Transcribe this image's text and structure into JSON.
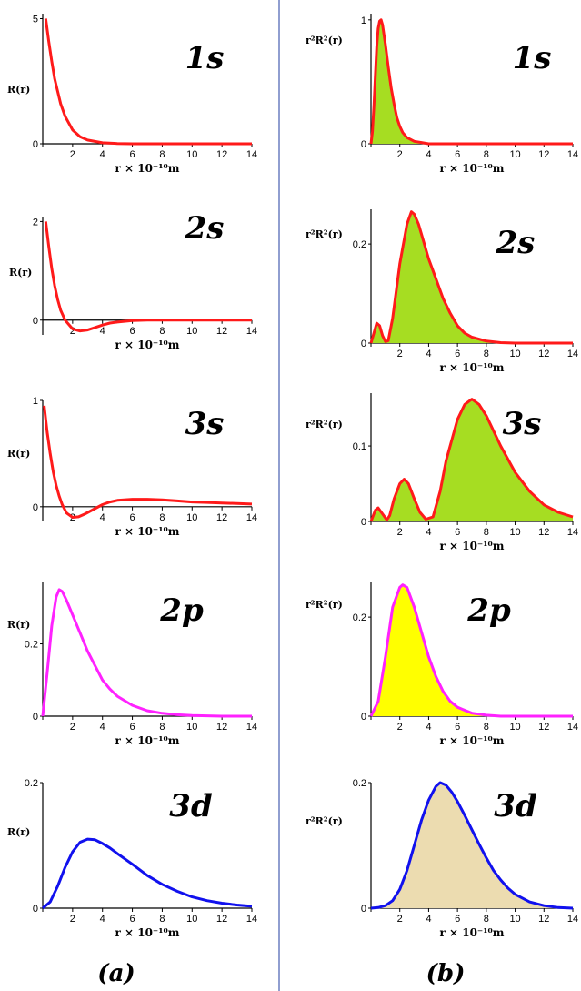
{
  "column_labels": [
    "(a)",
    "(b)"
  ],
  "colors": {
    "divider": "#6b7fc0",
    "red": "#ff1a1a",
    "magenta": "#ff22ff",
    "blue": "#1111ee",
    "fill_green": "#a6dd22",
    "fill_yellow": "#ffff00",
    "fill_tan": "#ecdcb0"
  },
  "chart_data": [
    {
      "id": "a1s",
      "type": "line",
      "orbital": "1s",
      "ylabel": "R(r)",
      "xlabel": "r × 10⁻¹⁰m",
      "xlim": [
        0,
        14
      ],
      "ylim": [
        0,
        5.2
      ],
      "x_ticks": [
        0,
        2,
        4,
        6,
        8,
        10,
        12,
        14
      ],
      "y_ticks": [
        0,
        5
      ],
      "line_color": "#ff1a1a",
      "series": [
        {
          "x": [
            0.2,
            0.4,
            0.6,
            0.8,
            1,
            1.2,
            1.5,
            2,
            2.5,
            3,
            4,
            5,
            6,
            14
          ],
          "y": [
            5.0,
            4.1,
            3.3,
            2.6,
            2.1,
            1.6,
            1.1,
            0.55,
            0.28,
            0.15,
            0.04,
            0.01,
            0,
            0
          ]
        }
      ]
    },
    {
      "id": "b1s",
      "type": "area",
      "orbital": "1s",
      "ylabel": "r²R²(r)",
      "xlabel": "r × 10⁻¹⁰m",
      "xlim": [
        0,
        14
      ],
      "ylim": [
        0,
        1.05
      ],
      "x_ticks": [
        0,
        2,
        4,
        6,
        8,
        10,
        12,
        14
      ],
      "y_ticks": [
        0,
        1
      ],
      "line_color": "#ff1a1a",
      "fill_color": "#a6dd22",
      "series": [
        {
          "x": [
            0,
            0.1,
            0.2,
            0.3,
            0.4,
            0.5,
            0.6,
            0.7,
            0.8,
            0.9,
            1,
            1.2,
            1.4,
            1.6,
            1.8,
            2,
            2.2,
            2.5,
            3,
            3.5,
            4,
            14
          ],
          "y": [
            0,
            0.1,
            0.3,
            0.55,
            0.78,
            0.93,
            0.99,
            1.0,
            0.96,
            0.88,
            0.8,
            0.62,
            0.45,
            0.32,
            0.21,
            0.14,
            0.09,
            0.05,
            0.02,
            0.01,
            0,
            0
          ]
        }
      ]
    },
    {
      "id": "a2s",
      "type": "line",
      "orbital": "2s",
      "ylabel": "R(r)",
      "xlabel": "r × 10⁻¹⁰m",
      "xlim": [
        0,
        14
      ],
      "ylim": [
        -0.3,
        2.1
      ],
      "x_ticks": [
        0,
        2,
        4,
        6,
        8,
        10,
        12,
        14
      ],
      "y_ticks": [
        0,
        2
      ],
      "line_color": "#ff1a1a",
      "series": [
        {
          "x": [
            0.2,
            0.4,
            0.6,
            0.8,
            1,
            1.2,
            1.5,
            2,
            2.5,
            3,
            3.5,
            4,
            4.5,
            5,
            6,
            7,
            8,
            14
          ],
          "y": [
            2.0,
            1.5,
            1.05,
            0.7,
            0.42,
            0.2,
            0.0,
            -0.18,
            -0.22,
            -0.2,
            -0.15,
            -0.1,
            -0.06,
            -0.04,
            -0.01,
            0,
            0,
            0
          ]
        }
      ]
    },
    {
      "id": "b2s",
      "type": "area",
      "orbital": "2s",
      "ylabel": "r²R²(r)",
      "xlabel": "r × 10⁻¹⁰m",
      "xlim": [
        0,
        14
      ],
      "ylim": [
        0,
        0.27
      ],
      "x_ticks": [
        0,
        2,
        4,
        6,
        8,
        10,
        12,
        14
      ],
      "y_ticks": [
        0,
        0.2
      ],
      "line_color": "#ff1a1a",
      "fill_color": "#a6dd22",
      "series": [
        {
          "x": [
            0,
            0.2,
            0.4,
            0.6,
            0.8,
            1,
            1.2,
            1.5,
            2,
            2.5,
            2.8,
            3,
            3.3,
            3.6,
            4,
            4.5,
            5,
            5.5,
            6,
            6.5,
            7,
            8,
            9,
            10,
            14
          ],
          "y": [
            0,
            0.02,
            0.04,
            0.035,
            0.015,
            0.003,
            0.005,
            0.05,
            0.16,
            0.24,
            0.265,
            0.26,
            0.24,
            0.21,
            0.17,
            0.13,
            0.09,
            0.06,
            0.035,
            0.02,
            0.012,
            0.004,
            0.001,
            0,
            0
          ]
        }
      ]
    },
    {
      "id": "a3s",
      "type": "line",
      "orbital": "3s",
      "ylabel": "R(r)",
      "xlabel": "r × 10⁻¹⁰m",
      "xlim": [
        0,
        14
      ],
      "ylim": [
        -0.13,
        1.0
      ],
      "x_ticks": [
        0,
        2,
        4,
        6,
        8,
        10,
        12,
        14
      ],
      "y_ticks": [
        0,
        1
      ],
      "line_color": "#ff1a1a",
      "series": [
        {
          "x": [
            0.1,
            0.3,
            0.5,
            0.7,
            0.9,
            1.1,
            1.3,
            1.6,
            2,
            2.4,
            2.8,
            3.2,
            3.6,
            4,
            4.5,
            5,
            6,
            7,
            8,
            9,
            10,
            11,
            12,
            13,
            14
          ],
          "y": [
            0.95,
            0.7,
            0.5,
            0.33,
            0.2,
            0.1,
            0.02,
            -0.06,
            -0.1,
            -0.095,
            -0.07,
            -0.04,
            -0.01,
            0.02,
            0.045,
            0.06,
            0.07,
            0.07,
            0.065,
            0.055,
            0.045,
            0.04,
            0.035,
            0.03,
            0.025
          ]
        }
      ]
    },
    {
      "id": "b3s",
      "type": "area",
      "orbital": "3s",
      "ylabel": "r²R²(r)",
      "xlabel": "r × 10⁻¹⁰m",
      "xlim": [
        0,
        14
      ],
      "ylim": [
        0,
        0.17
      ],
      "x_ticks": [
        0,
        2,
        4,
        6,
        8,
        10,
        12,
        14
      ],
      "y_ticks": [
        0,
        0.1
      ],
      "line_color": "#ff1a1a",
      "fill_color": "#a6dd22",
      "series": [
        {
          "x": [
            0,
            0.3,
            0.5,
            0.8,
            1.1,
            1.3,
            1.6,
            2,
            2.3,
            2.6,
            3,
            3.4,
            3.8,
            4.3,
            4.8,
            5.2,
            6,
            6.5,
            7,
            7.5,
            8,
            9,
            10,
            11,
            12,
            13,
            14
          ],
          "y": [
            0,
            0.015,
            0.018,
            0.01,
            0.002,
            0.008,
            0.03,
            0.05,
            0.056,
            0.05,
            0.03,
            0.012,
            0.003,
            0.006,
            0.04,
            0.08,
            0.135,
            0.155,
            0.162,
            0.155,
            0.14,
            0.1,
            0.065,
            0.04,
            0.022,
            0.012,
            0.006
          ]
        }
      ]
    },
    {
      "id": "a2p",
      "type": "line",
      "orbital": "2p",
      "ylabel": "R(r)",
      "xlabel": "r × 10⁻¹⁰m",
      "xlim": [
        0,
        14
      ],
      "ylim": [
        0,
        0.37
      ],
      "x_ticks": [
        0,
        2,
        4,
        6,
        8,
        10,
        12,
        14
      ],
      "y_ticks": [
        0,
        0.2
      ],
      "line_color": "#ff22ff",
      "series": [
        {
          "x": [
            0,
            0.3,
            0.6,
            0.9,
            1.1,
            1.3,
            1.6,
            2,
            2.5,
            3,
            3.5,
            4,
            4.5,
            5,
            6,
            7,
            8,
            9,
            10,
            11,
            12,
            14
          ],
          "y": [
            0,
            0.12,
            0.25,
            0.33,
            0.35,
            0.345,
            0.32,
            0.28,
            0.23,
            0.18,
            0.14,
            0.1,
            0.075,
            0.055,
            0.03,
            0.015,
            0.008,
            0.004,
            0.002,
            0.001,
            0,
            0
          ]
        }
      ]
    },
    {
      "id": "b2p",
      "type": "area",
      "orbital": "2p",
      "ylabel": "r²R²(r)",
      "xlabel": "r × 10⁻¹⁰m",
      "xlim": [
        0,
        14
      ],
      "ylim": [
        0,
        0.27
      ],
      "x_ticks": [
        0,
        2,
        4,
        6,
        8,
        10,
        12,
        14
      ],
      "y_ticks": [
        0,
        0.2
      ],
      "line_color": "#ff22ff",
      "fill_color": "#ffff00",
      "series": [
        {
          "x": [
            0,
            0.5,
            1,
            1.5,
            2,
            2.2,
            2.5,
            3,
            3.5,
            4,
            4.5,
            5,
            5.5,
            6,
            7,
            8,
            9,
            14
          ],
          "y": [
            0,
            0.03,
            0.12,
            0.22,
            0.26,
            0.265,
            0.26,
            0.22,
            0.17,
            0.12,
            0.08,
            0.05,
            0.03,
            0.018,
            0.006,
            0.002,
            0,
            0
          ]
        }
      ]
    },
    {
      "id": "a3d",
      "type": "line",
      "orbital": "3d",
      "ylabel": "R(r)",
      "xlabel": "r × 10⁻¹⁰m",
      "xlim": [
        0,
        14
      ],
      "ylim": [
        0,
        0.2
      ],
      "x_ticks": [
        0,
        2,
        4,
        6,
        8,
        10,
        12,
        14
      ],
      "y_ticks": [
        0,
        0.2
      ],
      "line_color": "#1111ee",
      "series": [
        {
          "x": [
            0,
            0.5,
            1,
            1.5,
            2,
            2.5,
            3,
            3.5,
            4,
            4.5,
            5,
            6,
            7,
            8,
            9,
            10,
            11,
            12,
            13,
            14
          ],
          "y": [
            0,
            0.01,
            0.035,
            0.065,
            0.09,
            0.105,
            0.11,
            0.109,
            0.103,
            0.096,
            0.087,
            0.07,
            0.052,
            0.038,
            0.027,
            0.018,
            0.012,
            0.008,
            0.005,
            0.003
          ]
        }
      ]
    },
    {
      "id": "b3d",
      "type": "area",
      "orbital": "3d",
      "ylabel": "r²R²(r)",
      "xlabel": "r × 10⁻¹⁰m",
      "xlim": [
        0,
        14
      ],
      "ylim": [
        0,
        0.2
      ],
      "x_ticks": [
        0,
        2,
        4,
        6,
        8,
        10,
        12,
        14
      ],
      "y_ticks": [
        0,
        0.2
      ],
      "line_color": "#1111ee",
      "fill_color": "#ecdcb0",
      "series": [
        {
          "x": [
            0,
            0.5,
            1,
            1.5,
            2,
            2.5,
            3,
            3.5,
            4,
            4.5,
            4.8,
            5.2,
            5.6,
            6,
            6.5,
            7,
            7.5,
            8,
            8.5,
            9,
            9.5,
            10,
            11,
            12,
            13,
            14
          ],
          "y": [
            0,
            0.001,
            0.004,
            0.012,
            0.03,
            0.06,
            0.1,
            0.14,
            0.172,
            0.194,
            0.2,
            0.196,
            0.185,
            0.17,
            0.148,
            0.125,
            0.102,
            0.08,
            0.06,
            0.045,
            0.032,
            0.022,
            0.01,
            0.004,
            0.001,
            0
          ]
        }
      ]
    }
  ]
}
